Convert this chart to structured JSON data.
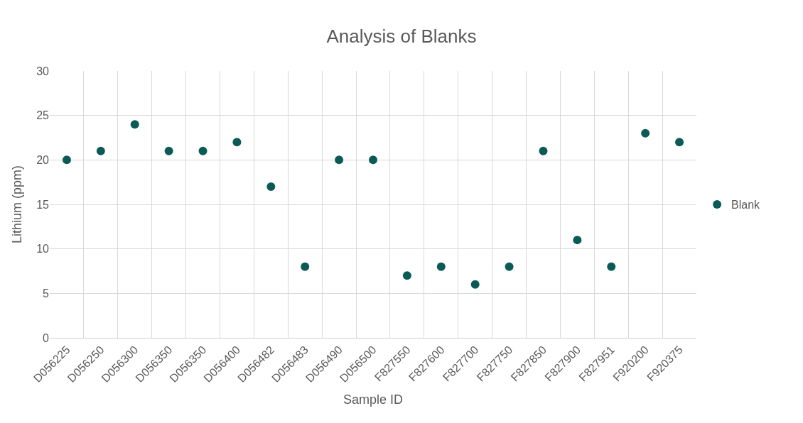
{
  "chart_data": {
    "type": "scatter",
    "title": "Analysis of Blanks",
    "xlabel": "Sample ID",
    "ylabel": "Lithium (ppm)",
    "categories": [
      "D056225",
      "D056250",
      "D056300",
      "D056350",
      "D056350",
      "D056400",
      "D056482",
      "D056483",
      "D056490",
      "D056500",
      "F827550",
      "F827600",
      "F827700",
      "F827750",
      "F827850",
      "F827900",
      "F827951",
      "F920200",
      "F920375"
    ],
    "series": [
      {
        "name": "Blank",
        "color": "#0b5a55",
        "values": [
          20,
          21,
          24,
          21,
          21,
          22,
          17,
          8,
          20,
          20,
          7,
          8,
          6,
          8,
          21,
          11,
          8,
          23,
          22
        ]
      }
    ],
    "ylim": [
      0,
      30
    ],
    "yticks": [
      0,
      5,
      10,
      15,
      20,
      25,
      30
    ],
    "grid": true,
    "legend": "right",
    "marker": "circle"
  }
}
